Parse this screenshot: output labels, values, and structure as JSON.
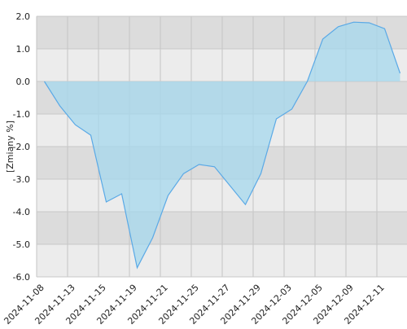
{
  "chart_data": {
    "type": "area",
    "y_label": "[Zmiany %]",
    "categories": [
      "2024-11-08",
      null,
      "2024-11-13",
      null,
      "2024-11-15",
      null,
      "2024-11-19",
      null,
      "2024-11-21",
      null,
      "2024-11-25",
      null,
      "2024-11-27",
      null,
      "2024-11-29",
      null,
      "2024-12-03",
      null,
      "2024-12-05",
      null,
      "2024-12-09",
      null,
      "2024-12-11",
      null
    ],
    "values": [
      0,
      -0.75,
      -1.33,
      -1.65,
      -3.7,
      -3.45,
      -5.72,
      -4.8,
      -3.5,
      -2.83,
      -2.55,
      -2.62,
      -3.2,
      -3.78,
      -2.83,
      -1.15,
      -0.85,
      0.0,
      1.3,
      1.68,
      1.82,
      1.8,
      1.62,
      0.25
    ],
    "color": "#5aa9e6",
    "fill": "#a6d8ee",
    "ylim": [
      -6,
      2
    ],
    "yticks": [
      {
        "value": -6,
        "label": "-6.0"
      },
      {
        "value": -5,
        "label": "-5.0"
      },
      {
        "value": -4,
        "label": "-4.0"
      },
      {
        "value": -3,
        "label": "-3.0"
      },
      {
        "value": -2,
        "label": "-2.0"
      },
      {
        "value": -1,
        "label": "-1.0"
      },
      {
        "value": 0,
        "label": "0.0"
      },
      {
        "value": 1,
        "label": "1.0"
      },
      {
        "value": 2,
        "label": "2.0"
      }
    ],
    "grid": true
  }
}
